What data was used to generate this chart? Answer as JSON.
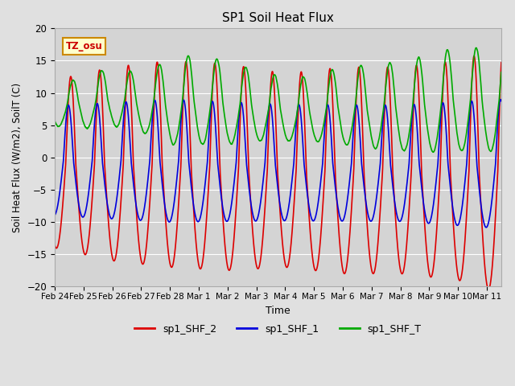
{
  "title": "SP1 Soil Heat Flux",
  "xlabel": "Time",
  "ylabel": "Soil Heat Flux (W/m2), SoilT (C)",
  "ylim": [
    -20,
    20
  ],
  "yticks": [
    -20,
    -15,
    -10,
    -5,
    0,
    5,
    10,
    15,
    20
  ],
  "bg_color": "#e0e0e0",
  "plot_bg_color": "#d4d4d4",
  "grid_color": "#ffffff",
  "line_colors": {
    "sp1_SHF_2": "#dd0000",
    "sp1_SHF_1": "#0000dd",
    "sp1_SHF_T": "#00aa00"
  },
  "line_width": 1.2,
  "tz_label": "TZ_osu",
  "tz_bg": "#ffffcc",
  "tz_border": "#cc8800",
  "tz_text_color": "#cc0000",
  "legend_entries": [
    "sp1_SHF_2",
    "sp1_SHF_1",
    "sp1_SHF_T"
  ],
  "x_tick_labels": [
    "Feb 24",
    "Feb 25",
    "Feb 26",
    "Feb 27",
    "Feb 28",
    "Mar 1",
    "Mar 2",
    "Mar 3",
    "Mar 4",
    "Mar 5",
    "Mar 6",
    "Mar 7",
    "Mar 8",
    "Mar 9",
    "Mar 10",
    "Mar 11"
  ],
  "num_days": 15.5,
  "figsize": [
    6.4,
    4.8
  ],
  "dpi": 100
}
